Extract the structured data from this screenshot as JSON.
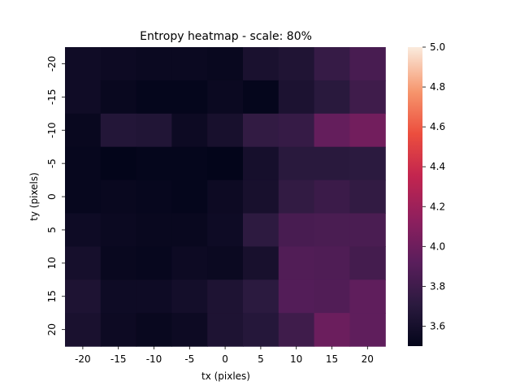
{
  "chart_data": {
    "type": "heatmap",
    "title": "Entropy heatmap - scale: 80%",
    "xlabel": "tx (pixles)",
    "ylabel": "ty (pixels)",
    "x": [
      -20,
      -15,
      -10,
      -5,
      0,
      5,
      10,
      15,
      20
    ],
    "y": [
      -20,
      -15,
      -10,
      -5,
      0,
      5,
      10,
      15,
      20
    ],
    "values": [
      [
        3.57,
        3.55,
        3.54,
        3.54,
        3.53,
        3.62,
        3.65,
        3.76,
        3.84
      ],
      [
        3.57,
        3.53,
        3.51,
        3.51,
        3.54,
        3.51,
        3.63,
        3.7,
        3.8
      ],
      [
        3.53,
        3.67,
        3.66,
        3.55,
        3.61,
        3.74,
        3.76,
        3.96,
        4.02
      ],
      [
        3.52,
        3.5,
        3.51,
        3.51,
        3.5,
        3.6,
        3.7,
        3.7,
        3.71
      ],
      [
        3.52,
        3.53,
        3.52,
        3.51,
        3.55,
        3.61,
        3.74,
        3.78,
        3.74
      ],
      [
        3.56,
        3.54,
        3.53,
        3.53,
        3.56,
        3.72,
        3.84,
        3.85,
        3.85
      ],
      [
        3.6,
        3.53,
        3.52,
        3.55,
        3.54,
        3.61,
        3.88,
        3.87,
        3.82
      ],
      [
        3.64,
        3.56,
        3.56,
        3.59,
        3.64,
        3.71,
        3.89,
        3.88,
        3.94
      ],
      [
        3.62,
        3.55,
        3.53,
        3.55,
        3.64,
        3.68,
        3.8,
        3.99,
        3.94
      ]
    ],
    "colorbar": {
      "min": 3.5,
      "max": 5.0,
      "ticks": [
        "3.6",
        "3.8",
        "4.0",
        "4.2",
        "4.4",
        "4.6",
        "4.8",
        "5.0"
      ],
      "colormap": "rocket"
    },
    "grid": false
  }
}
